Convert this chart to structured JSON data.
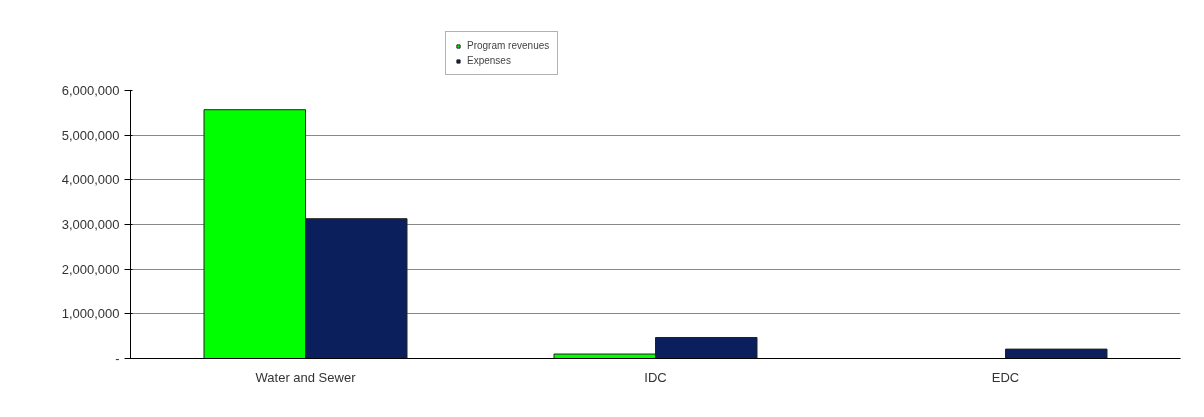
{
  "chart_data": {
    "type": "bar",
    "categories": [
      "Water and Sewer",
      "IDC",
      "EDC"
    ],
    "series": [
      {
        "name": "Program revenues",
        "color": "#00ff00",
        "values": [
          5570000,
          100000,
          null
        ]
      },
      {
        "name": "Expenses",
        "color": "#0a1f5c",
        "values": [
          3130000,
          470000,
          210000
        ]
      }
    ],
    "ylim": [
      0,
      6000000
    ],
    "yticks": [
      {
        "value": 0,
        "label": "-"
      },
      {
        "value": 1000000,
        "label": "1,000,000"
      },
      {
        "value": 2000000,
        "label": "2,000,000"
      },
      {
        "value": 3000000,
        "label": "3,000,000"
      },
      {
        "value": 4000000,
        "label": "4,000,000"
      },
      {
        "value": 5000000,
        "label": "5,000,000"
      },
      {
        "value": 6000000,
        "label": "6,000,000"
      }
    ],
    "grid": "y",
    "legend": "top"
  }
}
